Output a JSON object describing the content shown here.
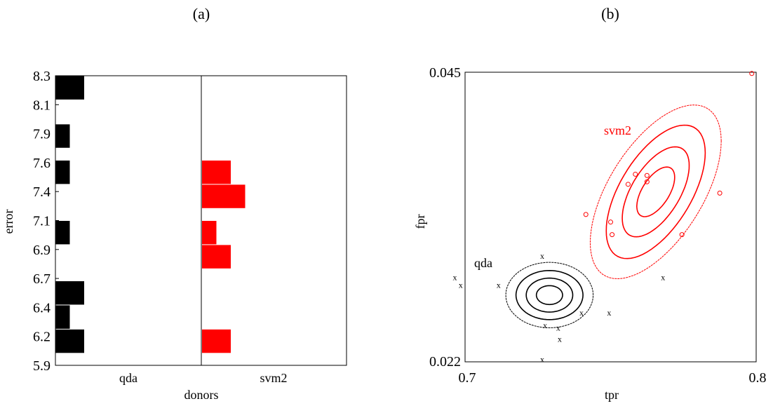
{
  "chart_data": [
    {
      "panel_label": "(a)",
      "type": "bar",
      "orientation": "horizontal",
      "ylabel": "error",
      "xlabel": "donors",
      "yticks": [
        "5.9",
        "6.2",
        "6.4",
        "6.7",
        "6.9",
        "7.1",
        "7.4",
        "7.6",
        "7.9",
        "8.1",
        "8.3"
      ],
      "grid": false,
      "legend": "none",
      "groups": [
        {
          "name": "qda",
          "color": "#000000",
          "bins": [
            {
              "error": 6.1,
              "count": 2
            },
            {
              "error": 6.3,
              "count": 1
            },
            {
              "error": 6.5,
              "count": 2
            },
            {
              "error": 7.0,
              "count": 1
            },
            {
              "error": 7.5,
              "count": 1
            },
            {
              "error": 7.8,
              "count": 1
            },
            {
              "error": 8.2,
              "count": 2
            }
          ]
        },
        {
          "name": "svm2",
          "color": "#ff0000",
          "bins": [
            {
              "error": 6.1,
              "count": 2
            },
            {
              "error": 6.8,
              "count": 2
            },
            {
              "error": 7.0,
              "count": 1
            },
            {
              "error": 7.3,
              "count": 3
            },
            {
              "error": 7.5,
              "count": 2
            }
          ]
        }
      ]
    },
    {
      "panel_label": "(b)",
      "type": "scatter",
      "xlabel": "tpr",
      "ylabel": "fpr",
      "xlim": [
        0.7,
        0.8
      ],
      "ylim": [
        0.022,
        0.045
      ],
      "xticks": [
        "0.7",
        "0.8"
      ],
      "yticks": [
        "0.022",
        "0.045"
      ],
      "grid": false,
      "legend": "inline labels",
      "series": [
        {
          "name": "qda",
          "color": "#000000",
          "marker": "x",
          "center": [
            0.729,
            0.0273
          ],
          "contour_radii": [
            [
              0.0045,
              0.00075
            ],
            [
              0.008,
              0.00135
            ],
            [
              0.0115,
              0.00195
            ],
            [
              0.015,
              0.0026
            ]
          ],
          "points": [
            [
              0.6965,
              0.0287
            ],
            [
              0.6985,
              0.0281
            ],
            [
              0.7115,
              0.0281
            ],
            [
              0.7265,
              0.0304
            ],
            [
              0.7275,
              0.0249
            ],
            [
              0.732,
              0.0247
            ],
            [
              0.74,
              0.0259
            ],
            [
              0.7495,
              0.0259
            ],
            [
              0.7325,
              0.0238
            ],
            [
              0.7265,
              0.0222
            ],
            [
              0.768,
              0.0287
            ]
          ]
        },
        {
          "name": "svm2",
          "color": "#ff0000",
          "marker": "o",
          "center": [
            0.7655,
            0.0355
          ],
          "contour_radii": [
            [
              0.0065,
              0.0016
            ],
            [
              0.0115,
              0.0029
            ],
            [
              0.017,
              0.0043
            ],
            [
              0.0225,
              0.0056
            ]
          ],
          "contour_tilt": 0.9,
          "points": [
            [
              0.7985,
              0.0449
            ],
            [
              0.7415,
              0.0337
            ],
            [
              0.75,
              0.0331
            ],
            [
              0.7505,
              0.0321
            ],
            [
              0.756,
              0.0361
            ],
            [
              0.7585,
              0.0369
            ],
            [
              0.7625,
              0.0368
            ],
            [
              0.7625,
              0.0363
            ],
            [
              0.7745,
              0.0321
            ],
            [
              0.7875,
              0.0354
            ]
          ]
        }
      ]
    }
  ]
}
